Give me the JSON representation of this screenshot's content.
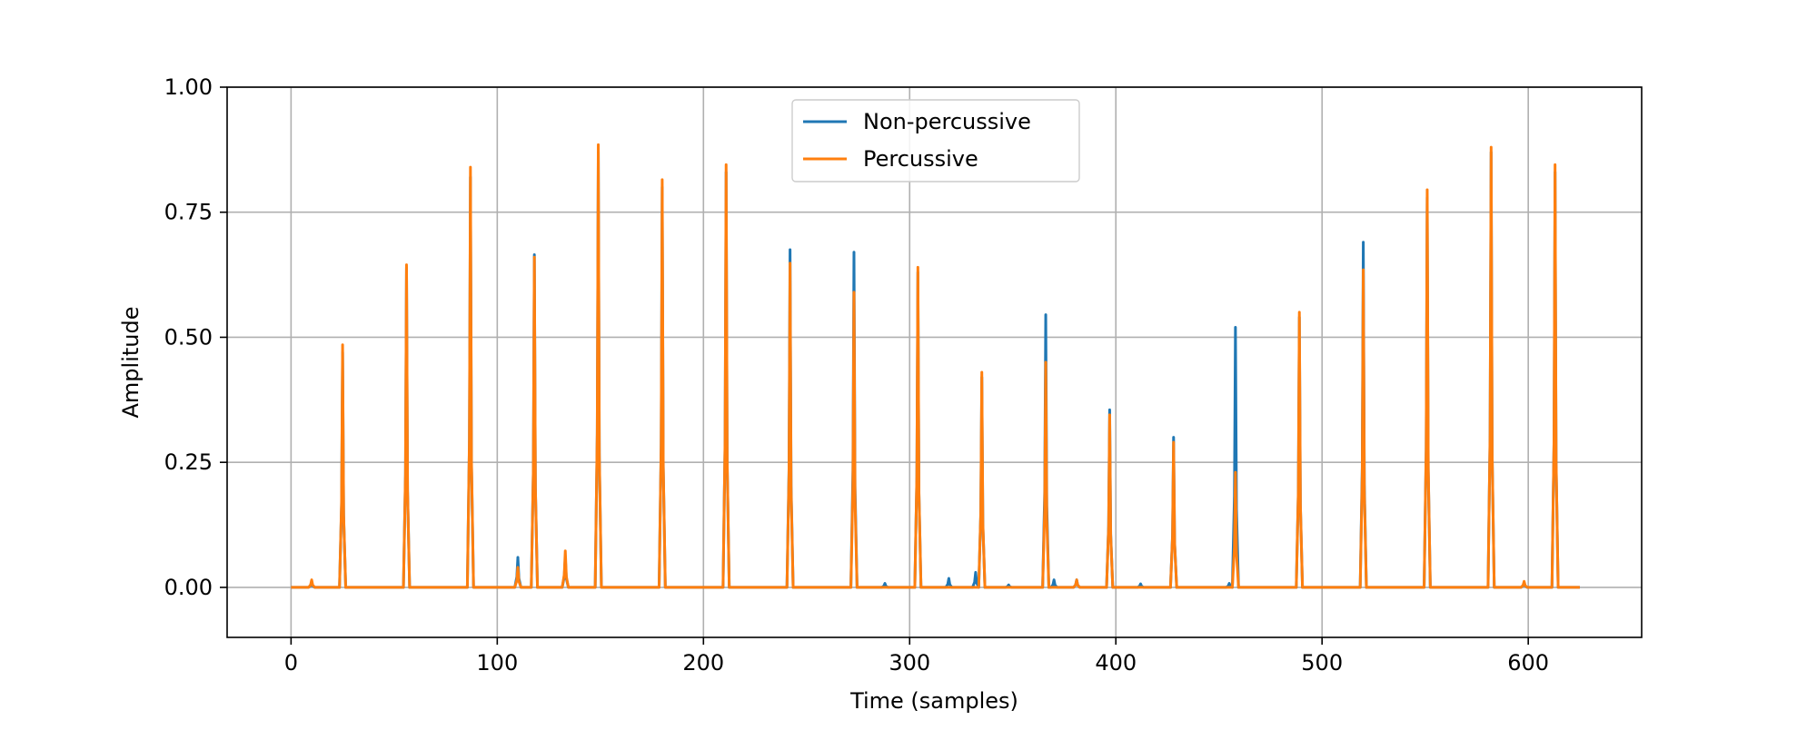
{
  "chart_data": {
    "type": "line",
    "title": "",
    "xlabel": "Time (samples)",
    "ylabel": "Amplitude",
    "xlim": [
      -31,
      655
    ],
    "ylim": [
      -0.1,
      1.0
    ],
    "xticks": [
      0,
      100,
      200,
      300,
      400,
      500,
      600
    ],
    "xtick_labels": [
      "0",
      "100",
      "200",
      "300",
      "400",
      "500",
      "600"
    ],
    "yticks": [
      0.0,
      0.25,
      0.5,
      0.75,
      1.0
    ],
    "ytick_labels": [
      "0.00",
      "0.25",
      "0.50",
      "0.75",
      "1.00"
    ],
    "grid": true,
    "legend_position": "upper center",
    "x_range": [
      0,
      625
    ],
    "series": [
      {
        "name": "Non-percussive",
        "color": "#1f77b4",
        "peaks": [
          [
            10,
            0.01
          ],
          [
            25,
            0.47
          ],
          [
            56,
            0.64
          ],
          [
            87,
            0.82
          ],
          [
            110,
            0.06
          ],
          [
            118,
            0.665
          ],
          [
            133,
            0.06
          ],
          [
            149,
            0.87
          ],
          [
            180,
            0.8
          ],
          [
            211,
            0.83
          ],
          [
            242,
            0.675
          ],
          [
            273,
            0.67
          ],
          [
            288,
            0.008
          ],
          [
            304,
            0.63
          ],
          [
            319,
            0.018
          ],
          [
            332,
            0.03
          ],
          [
            335,
            0.42
          ],
          [
            348,
            0.005
          ],
          [
            366,
            0.545
          ],
          [
            370,
            0.015
          ],
          [
            381,
            0.015
          ],
          [
            397,
            0.355
          ],
          [
            412,
            0.007
          ],
          [
            428,
            0.3
          ],
          [
            455,
            0.008
          ],
          [
            458,
            0.52
          ],
          [
            489,
            0.54
          ],
          [
            520,
            0.69
          ],
          [
            551,
            0.78
          ],
          [
            582,
            0.87
          ],
          [
            598,
            0.01
          ],
          [
            613,
            0.83
          ]
        ]
      },
      {
        "name": "Percussive",
        "color": "#ff7f0e",
        "peaks": [
          [
            10,
            0.015
          ],
          [
            25,
            0.485
          ],
          [
            56,
            0.645
          ],
          [
            87,
            0.84
          ],
          [
            110,
            0.04
          ],
          [
            118,
            0.66
          ],
          [
            133,
            0.073
          ],
          [
            149,
            0.885
          ],
          [
            180,
            0.815
          ],
          [
            211,
            0.845
          ],
          [
            242,
            0.648
          ],
          [
            273,
            0.59
          ],
          [
            304,
            0.64
          ],
          [
            335,
            0.43
          ],
          [
            366,
            0.45
          ],
          [
            381,
            0.015
          ],
          [
            397,
            0.345
          ],
          [
            428,
            0.29
          ],
          [
            458,
            0.23
          ],
          [
            489,
            0.55
          ],
          [
            520,
            0.635
          ],
          [
            551,
            0.795
          ],
          [
            582,
            0.88
          ],
          [
            598,
            0.012
          ],
          [
            613,
            0.845
          ]
        ]
      }
    ]
  }
}
